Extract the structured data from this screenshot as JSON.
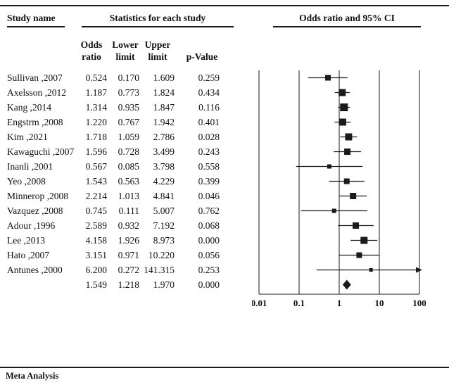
{
  "title_row": {
    "study_name": "Study name",
    "statistics": "Statistics for each study",
    "plot": "Odds ratio and 95% CI"
  },
  "columns": {
    "odds_line1": "Odds",
    "odds_line2": "ratio",
    "lower_line1": "Lower",
    "lower_line2": "limit",
    "upper_line1": "Upper",
    "upper_line2": "limit",
    "p": "p-Value"
  },
  "footer": "Meta Analysis",
  "colors": {
    "ink": "#1a1a1a",
    "background": "#ffffff"
  },
  "chart_data": {
    "type": "forest",
    "x_scale": "log",
    "x_range": [
      0.01,
      100
    ],
    "x_ticks": [
      "0.01",
      "0.1",
      "1",
      "10",
      "100"
    ],
    "studies": [
      {
        "name": "Sullivan ,2007",
        "odds_ratio": 0.524,
        "lower": 0.17,
        "upper": 1.609,
        "p_value": 0.259,
        "marker": 8
      },
      {
        "name": "Axelsson ,2012",
        "odds_ratio": 1.187,
        "lower": 0.773,
        "upper": 1.824,
        "p_value": 0.434,
        "marker": 10
      },
      {
        "name": "Kang ,2014",
        "odds_ratio": 1.314,
        "lower": 0.935,
        "upper": 1.847,
        "p_value": 0.116,
        "marker": 11
      },
      {
        "name": "Engstrm ,2008",
        "odds_ratio": 1.22,
        "lower": 0.767,
        "upper": 1.942,
        "p_value": 0.401,
        "marker": 10
      },
      {
        "name": "Kim ,2021",
        "odds_ratio": 1.718,
        "lower": 1.059,
        "upper": 2.786,
        "p_value": 0.028,
        "marker": 10
      },
      {
        "name": "Kawaguchi ,2007",
        "odds_ratio": 1.596,
        "lower": 0.728,
        "upper": 3.499,
        "p_value": 0.243,
        "marker": 9
      },
      {
        "name": "Inanli ,2001",
        "odds_ratio": 0.567,
        "lower": 0.085,
        "upper": 3.798,
        "p_value": 0.558,
        "marker": 6
      },
      {
        "name": "Yeo ,2008",
        "odds_ratio": 1.543,
        "lower": 0.563,
        "upper": 4.229,
        "p_value": 0.399,
        "marker": 8
      },
      {
        "name": "Minnerop ,2008",
        "odds_ratio": 2.214,
        "lower": 1.013,
        "upper": 4.841,
        "p_value": 0.046,
        "marker": 9
      },
      {
        "name": "Vazquez ,2008",
        "odds_ratio": 0.745,
        "lower": 0.111,
        "upper": 5.007,
        "p_value": 0.762,
        "marker": 6
      },
      {
        "name": "Adour ,1996",
        "odds_ratio": 2.589,
        "lower": 0.932,
        "upper": 7.192,
        "p_value": 0.068,
        "marker": 9
      },
      {
        "name": "Lee ,2013",
        "odds_ratio": 4.158,
        "lower": 1.926,
        "upper": 8.973,
        "p_value": 0.0,
        "marker": 10
      },
      {
        "name": "Hato ,2007",
        "odds_ratio": 3.151,
        "lower": 0.971,
        "upper": 10.22,
        "p_value": 0.056,
        "marker": 8
      },
      {
        "name": "Antunes ,2000",
        "odds_ratio": 6.2,
        "lower": 0.272,
        "upper": 141.315,
        "p_value": 0.253,
        "marker": 5
      }
    ],
    "overall": {
      "odds_ratio": 1.549,
      "lower": 1.218,
      "upper": 1.97,
      "p_value": 0.0
    }
  }
}
